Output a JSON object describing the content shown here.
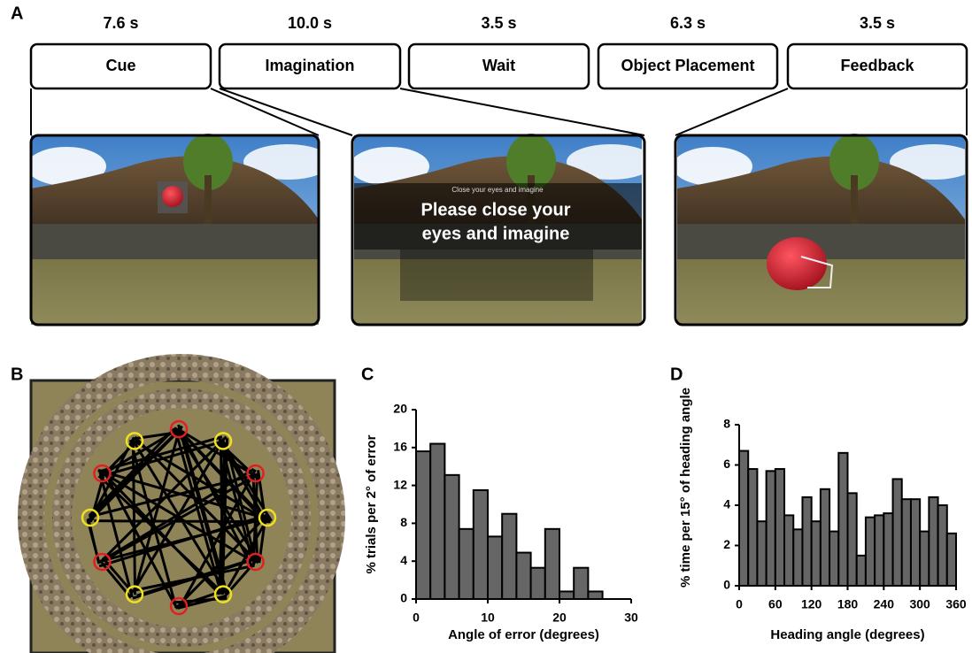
{
  "panel_labels": [
    "A",
    "B",
    "C",
    "D"
  ],
  "timeline": {
    "stages": [
      {
        "duration": "7.6 s",
        "name": "Cue"
      },
      {
        "duration": "10.0 s",
        "name": "Imagination"
      },
      {
        "duration": "3.5 s",
        "name": "Wait"
      },
      {
        "duration": "6.3 s",
        "name": "Object Placement"
      },
      {
        "duration": "3.5 s",
        "name": "Feedback"
      }
    ]
  },
  "screens": {
    "small_text": "Close your eyes and imagine",
    "overlay_lines": [
      "Please close your",
      "eyes and imagine"
    ]
  },
  "chart_data": [
    {
      "type": "histogram",
      "xlabel": "Angle of error (degrees)",
      "ylabel": "% trials per 2° of error",
      "bins": [
        0,
        2,
        4,
        6,
        8,
        10,
        12,
        14,
        16,
        18,
        20,
        22,
        24,
        26
      ],
      "values": [
        15.6,
        16.4,
        13.1,
        7.4,
        11.5,
        6.6,
        9.0,
        4.9,
        3.3,
        7.4,
        0.8,
        3.3,
        0.8
      ],
      "color": "#666666",
      "xlim": [
        0,
        30
      ],
      "xticks": [
        0,
        10,
        20,
        30
      ],
      "ylim": [
        0,
        20
      ],
      "yticks": [
        0,
        4,
        8,
        12,
        16,
        20
      ]
    },
    {
      "type": "histogram",
      "xlabel": "Heading angle (degrees)",
      "ylabel": "% time per 15° of heading angle",
      "bins": [
        0,
        15,
        30,
        45,
        60,
        75,
        90,
        105,
        120,
        135,
        150,
        165,
        180,
        195,
        210,
        225,
        240,
        255,
        270,
        285,
        300,
        315,
        330,
        345,
        360
      ],
      "values": [
        6.7,
        5.8,
        3.2,
        5.7,
        5.8,
        3.5,
        2.8,
        4.4,
        3.2,
        4.8,
        2.7,
        6.6,
        4.6,
        1.5,
        3.4,
        3.5,
        3.6,
        5.3,
        4.3,
        4.3,
        2.7,
        4.4,
        4.0,
        2.6
      ],
      "color": "#666666",
      "xlim": [
        0,
        360
      ],
      "xticks": [
        0,
        60,
        120,
        180,
        240,
        300,
        360
      ],
      "ylim": [
        0,
        8
      ],
      "yticks": [
        0,
        2,
        4,
        6,
        8
      ]
    }
  ]
}
